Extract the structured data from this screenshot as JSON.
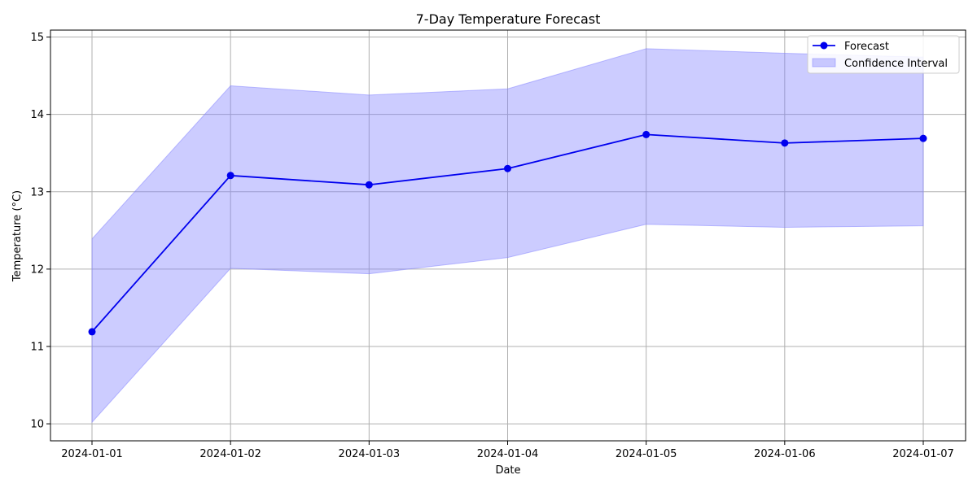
{
  "chart_data": {
    "type": "line",
    "title": "7-Day Temperature Forecast",
    "xlabel": "Date",
    "ylabel": "Temperature (°C)",
    "x": [
      "2024-01-01",
      "2024-01-02",
      "2024-01-03",
      "2024-01-04",
      "2024-01-05",
      "2024-01-06",
      "2024-01-07"
    ],
    "series": [
      {
        "name": "Forecast",
        "values": [
          11.19,
          13.21,
          13.09,
          13.3,
          13.74,
          13.63,
          13.69
        ],
        "color": "#0000ee",
        "marker": "circle"
      }
    ],
    "band": {
      "name": "Confidence Interval",
      "lower": [
        10.02,
        12.01,
        11.94,
        12.15,
        12.58,
        12.54,
        12.56
      ],
      "upper": [
        12.39,
        14.37,
        14.25,
        14.33,
        14.85,
        14.79,
        14.74
      ],
      "color": "#8080ff",
      "opacity": 0.4
    },
    "yticks": [
      10,
      11,
      12,
      13,
      14,
      15
    ],
    "ylim": [
      9.78,
      15.09
    ],
    "grid": true,
    "legend_position": "top-right"
  }
}
